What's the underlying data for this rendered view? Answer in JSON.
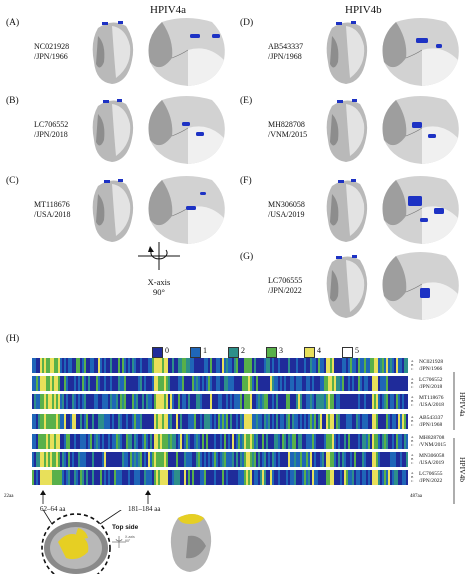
{
  "titles": {
    "left": "HPIV4a",
    "right": "HPIV4b"
  },
  "panels": [
    {
      "letter": "(A)",
      "strain": "NC021928",
      "loc": "/JPN/1966"
    },
    {
      "letter": "(B)",
      "strain": "LC706552",
      "loc": "/JPN/2018"
    },
    {
      "letter": "(C)",
      "strain": "MT118676",
      "loc": "/USA/2018"
    },
    {
      "letter": "(D)",
      "strain": "AB543337",
      "loc": "/JPN/1968"
    },
    {
      "letter": "(E)",
      "strain": "MH828708",
      "loc": "/VNM/2015"
    },
    {
      "letter": "(F)",
      "strain": "MN306058",
      "loc": "/USA/2019"
    },
    {
      "letter": "(G)",
      "strain": "LC706555",
      "loc": "/JPN/2022"
    }
  ],
  "rotation": {
    "axis": "X-axis",
    "angle": "90°"
  },
  "panel_h": {
    "letter": "(H)",
    "legend": [
      {
        "label": "0",
        "color": "#1f2b9a"
      },
      {
        "label": "1",
        "color": "#1f66b8"
      },
      {
        "label": "2",
        "color": "#2d8f8a"
      },
      {
        "label": "3",
        "color": "#58b04a"
      },
      {
        "label": "4",
        "color": "#e8e05a"
      },
      {
        "label": "5",
        "color": "#ffffff"
      }
    ],
    "rows": [
      {
        "strain": "NC021928",
        "loc": "/JPN/1966"
      },
      {
        "strain": "LC706552",
        "loc": "/JPN/2018"
      },
      {
        "strain": "MT118676",
        "loc": "/USA/2018"
      },
      {
        "strain": "AB543337",
        "loc": "/JPN/1968"
      },
      {
        "strain": "MH828708",
        "loc": "/VNM/2015"
      },
      {
        "strain": "MN306058",
        "loc": "/USA/2019"
      },
      {
        "strain": "LC706555",
        "loc": "/JPN/2022"
      }
    ],
    "chain_letters": [
      "A",
      "B",
      "C"
    ],
    "group_labels": {
      "a": "HPIV4a",
      "b": "HPIV4b"
    },
    "range_start": "22aa",
    "range_end": "487aa",
    "marker1": "62–64 aa",
    "marker2": "181–184 aa",
    "top_side": "Top side",
    "mini_axis": "X-axis",
    "mini_angle": "90°"
  }
}
